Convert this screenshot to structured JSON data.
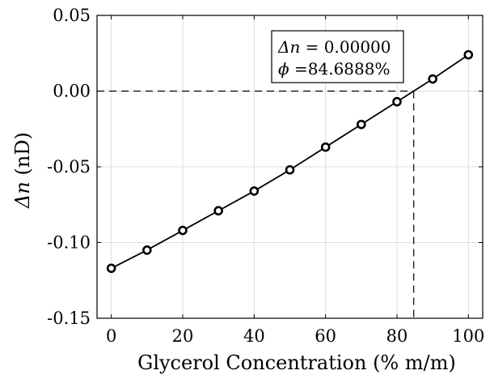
{
  "chart_data": {
    "type": "line",
    "xlabel": "Glycerol Concentration (% m/m)",
    "ylabel_symbol": "Δn",
    "ylabel_unit": "(nD)",
    "xlim": [
      -4,
      104
    ],
    "ylim": [
      -0.15,
      0.05
    ],
    "xticks": [
      0,
      20,
      40,
      60,
      80,
      100
    ],
    "yticks": [
      0.05,
      0.0,
      -0.05,
      -0.1,
      -0.15
    ],
    "xtick_labels": [
      "0",
      "20",
      "40",
      "60",
      "80",
      "100"
    ],
    "ytick_labels": [
      "0.05",
      "0.00",
      "-0.05",
      "-0.10",
      "-0.15"
    ],
    "grid": true,
    "series": [
      {
        "x": [
          0,
          10,
          20,
          30,
          40,
          50,
          60,
          70,
          80,
          90,
          100
        ],
        "y": [
          -0.117,
          -0.105,
          -0.092,
          -0.079,
          -0.066,
          -0.052,
          -0.037,
          -0.022,
          -0.007,
          0.008,
          0.024
        ],
        "marker": "open-circle",
        "color": "#000000"
      }
    ],
    "reference": {
      "x": 84.6888,
      "y": 0.0
    },
    "annotation": {
      "line1_symbol": "Δn",
      "line1_value": " = 0.00000",
      "line2_symbol": "ϕ",
      "line2_value": " =84.6888%"
    }
  }
}
